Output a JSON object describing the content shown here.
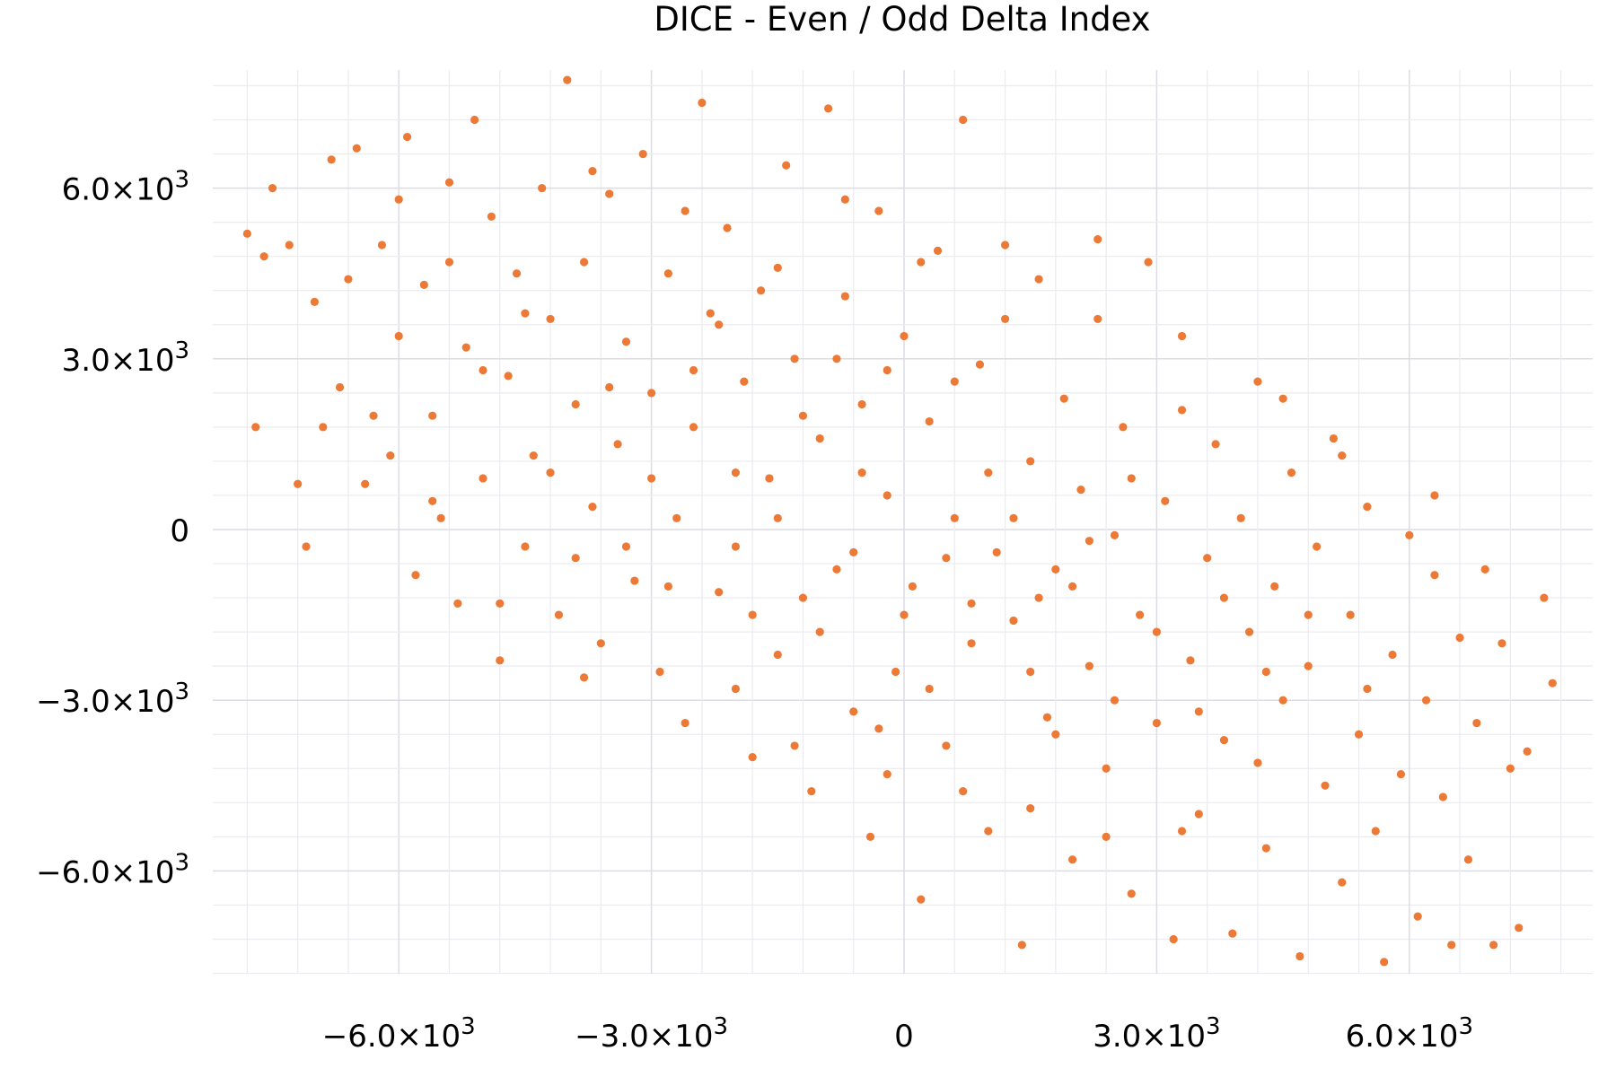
{
  "chart_data": {
    "type": "scatter",
    "title": "DICE - Even / Odd Delta Index",
    "xlabel": "",
    "ylabel": "",
    "xlim": [
      -8200,
      8200
    ],
    "ylim": [
      -7800,
      8100
    ],
    "grid": true,
    "minor_grid_step": 600,
    "legend": "none",
    "marker_color": "#ec7a36",
    "xticks": [
      {
        "value": -6000,
        "base": "−6.0×10",
        "exp": "3"
      },
      {
        "value": -3000,
        "base": "−3.0×10",
        "exp": "3"
      },
      {
        "value": 0,
        "base": "0",
        "exp": ""
      },
      {
        "value": 3000,
        "base": "3.0×10",
        "exp": "3"
      },
      {
        "value": 6000,
        "base": "6.0×10",
        "exp": "3"
      }
    ],
    "yticks": [
      {
        "value": 6000,
        "base": "6.0×10",
        "exp": "3"
      },
      {
        "value": 3000,
        "base": "3.0×10",
        "exp": "3"
      },
      {
        "value": 0,
        "base": "0",
        "exp": ""
      },
      {
        "value": -3000,
        "base": "−3.0×10",
        "exp": "3"
      },
      {
        "value": -6000,
        "base": "−6.0×10",
        "exp": "3"
      }
    ],
    "points": [
      [
        -7800,
        5200
      ],
      [
        -7700,
        1800
      ],
      [
        -7600,
        4800
      ],
      [
        -7500,
        6000
      ],
      [
        -7300,
        5000
      ],
      [
        -7200,
        800
      ],
      [
        -7100,
        -300
      ],
      [
        -7000,
        4000
      ],
      [
        -6900,
        1800
      ],
      [
        -6800,
        6500
      ],
      [
        -6700,
        2500
      ],
      [
        -6600,
        4400
      ],
      [
        -6500,
        6700
      ],
      [
        -6400,
        800
      ],
      [
        -6300,
        2000
      ],
      [
        -6200,
        5000
      ],
      [
        -6100,
        1300
      ],
      [
        -6000,
        3400
      ],
      [
        -5900,
        6900
      ],
      [
        -5800,
        -800
      ],
      [
        -5700,
        4300
      ],
      [
        -5600,
        2000
      ],
      [
        -5500,
        200
      ],
      [
        -5400,
        6100
      ],
      [
        -5300,
        -1300
      ],
      [
        -5200,
        3200
      ],
      [
        -5100,
        7200
      ],
      [
        -5000,
        900
      ],
      [
        -4900,
        5500
      ],
      [
        -4800,
        -2300
      ],
      [
        -4700,
        2700
      ],
      [
        -4600,
        4500
      ],
      [
        -4500,
        -300
      ],
      [
        -4400,
        1300
      ],
      [
        -4300,
        6000
      ],
      [
        -4200,
        3700
      ],
      [
        -4100,
        -1500
      ],
      [
        -4000,
        7900
      ],
      [
        -3900,
        2200
      ],
      [
        -3800,
        4700
      ],
      [
        -3700,
        400
      ],
      [
        -3600,
        -2000
      ],
      [
        -3500,
        5900
      ],
      [
        -3400,
        1500
      ],
      [
        -3300,
        3300
      ],
      [
        -3200,
        -900
      ],
      [
        -3100,
        6600
      ],
      [
        -3000,
        2400
      ],
      [
        -2900,
        -2500
      ],
      [
        -2800,
        4500
      ],
      [
        -2700,
        200
      ],
      [
        -2600,
        -3400
      ],
      [
        -2500,
        1800
      ],
      [
        -2400,
        7500
      ],
      [
        -2300,
        3800
      ],
      [
        -2200,
        -1100
      ],
      [
        -2100,
        5300
      ],
      [
        -2000,
        -300
      ],
      [
        -1900,
        2600
      ],
      [
        -1800,
        -4000
      ],
      [
        -1700,
        4200
      ],
      [
        -1600,
        900
      ],
      [
        -1500,
        -2200
      ],
      [
        -1400,
        6400
      ],
      [
        -1300,
        3000
      ],
      [
        -1200,
        -1200
      ],
      [
        -1100,
        -4600
      ],
      [
        -1000,
        1600
      ],
      [
        -900,
        7400
      ],
      [
        -800,
        -700
      ],
      [
        -700,
        4100
      ],
      [
        -600,
        -3200
      ],
      [
        -500,
        2200
      ],
      [
        -400,
        -5400
      ],
      [
        -300,
        5600
      ],
      [
        -200,
        600
      ],
      [
        -100,
        -2500
      ],
      [
        0,
        3400
      ],
      [
        100,
        -1000
      ],
      [
        200,
        -6500
      ],
      [
        300,
        1900
      ],
      [
        400,
        4900
      ],
      [
        500,
        -3800
      ],
      [
        600,
        200
      ],
      [
        700,
        7200
      ],
      [
        800,
        -2000
      ],
      [
        900,
        2900
      ],
      [
        1000,
        -5300
      ],
      [
        1100,
        -400
      ],
      [
        1200,
        3700
      ],
      [
        1300,
        -1600
      ],
      [
        1400,
        -7300
      ],
      [
        1500,
        1200
      ],
      [
        1600,
        4400
      ],
      [
        1700,
        -3300
      ],
      [
        1800,
        -700
      ],
      [
        1900,
        2300
      ],
      [
        2000,
        -5800
      ],
      [
        2100,
        700
      ],
      [
        2200,
        -2400
      ],
      [
        2300,
        3700
      ],
      [
        2400,
        -4200
      ],
      [
        2500,
        -100
      ],
      [
        2600,
        1800
      ],
      [
        2700,
        -6400
      ],
      [
        2800,
        -1500
      ],
      [
        2900,
        4700
      ],
      [
        3000,
        -3400
      ],
      [
        3100,
        500
      ],
      [
        3200,
        -7200
      ],
      [
        3300,
        2100
      ],
      [
        3400,
        -2300
      ],
      [
        3500,
        -5000
      ],
      [
        3600,
        -500
      ],
      [
        3700,
        1500
      ],
      [
        3800,
        -3700
      ],
      [
        3900,
        -7100
      ],
      [
        4000,
        200
      ],
      [
        4100,
        -1800
      ],
      [
        4200,
        2600
      ],
      [
        4300,
        -5600
      ],
      [
        4400,
        -1000
      ],
      [
        4500,
        -3000
      ],
      [
        4600,
        1000
      ],
      [
        4700,
        -7500
      ],
      [
        4800,
        -2400
      ],
      [
        4900,
        -300
      ],
      [
        5000,
        -4500
      ],
      [
        5100,
        1600
      ],
      [
        5200,
        -6200
      ],
      [
        5300,
        -1500
      ],
      [
        5400,
        -3600
      ],
      [
        5500,
        400
      ],
      [
        5600,
        -5300
      ],
      [
        5700,
        -7600
      ],
      [
        5800,
        -2200
      ],
      [
        5900,
        -4300
      ],
      [
        6000,
        -100
      ],
      [
        6100,
        -6800
      ],
      [
        6200,
        -3000
      ],
      [
        6300,
        600
      ],
      [
        6400,
        -4700
      ],
      [
        6500,
        -7300
      ],
      [
        6600,
        -1900
      ],
      [
        6700,
        -5800
      ],
      [
        6800,
        -3400
      ],
      [
        6900,
        -700
      ],
      [
        7000,
        -7300
      ],
      [
        7100,
        -2000
      ],
      [
        7200,
        -4200
      ],
      [
        7300,
        -7000
      ],
      [
        7400,
        -3900
      ],
      [
        7600,
        -1200
      ],
      [
        7700,
        -2700
      ],
      [
        -4500,
        3800
      ],
      [
        -3900,
        -500
      ],
      [
        -3000,
        900
      ],
      [
        -2500,
        2800
      ],
      [
        -2000,
        1000
      ],
      [
        -1500,
        200
      ],
      [
        -1000,
        -1800
      ],
      [
        -500,
        1000
      ],
      [
        0,
        -1500
      ],
      [
        500,
        -500
      ],
      [
        1000,
        1000
      ],
      [
        1500,
        -2500
      ],
      [
        2000,
        -1000
      ],
      [
        2500,
        -3000
      ],
      [
        3000,
        -1800
      ],
      [
        -3500,
        2500
      ],
      [
        -2800,
        -1000
      ],
      [
        -1200,
        2000
      ],
      [
        300,
        -2800
      ],
      [
        1800,
        -3600
      ],
      [
        2700,
        900
      ],
      [
        3500,
        -3200
      ],
      [
        4300,
        -2500
      ],
      [
        -600,
        -400
      ],
      [
        800,
        -1300
      ],
      [
        -1800,
        -1500
      ],
      [
        -200,
        2800
      ],
      [
        1300,
        200
      ],
      [
        2200,
        -200
      ],
      [
        -4200,
        1000
      ],
      [
        -5000,
        2800
      ],
      [
        -3300,
        -300
      ],
      [
        -2200,
        3600
      ],
      [
        -800,
        3000
      ],
      [
        600,
        2600
      ],
      [
        1600,
        -1200
      ],
      [
        3800,
        -1200
      ],
      [
        4800,
        -1500
      ],
      [
        5500,
        -2800
      ],
      [
        -1500,
        4600
      ],
      [
        -2600,
        5600
      ],
      [
        -3700,
        6300
      ],
      [
        -5400,
        4700
      ],
      [
        -6000,
        5800
      ],
      [
        -700,
        5800
      ],
      [
        200,
        4700
      ],
      [
        1200,
        5000
      ],
      [
        2300,
        5100
      ],
      [
        3300,
        3400
      ],
      [
        4500,
        2300
      ],
      [
        5200,
        1300
      ],
      [
        6300,
        -800
      ],
      [
        -200,
        -4300
      ],
      [
        700,
        -4600
      ],
      [
        1500,
        -4900
      ],
      [
        2400,
        -5400
      ],
      [
        3300,
        -5300
      ],
      [
        4200,
        -4100
      ],
      [
        -2000,
        -2800
      ],
      [
        -1300,
        -3800
      ],
      [
        -300,
        -3500
      ],
      [
        -4800,
        -1300
      ],
      [
        -3800,
        -2600
      ],
      [
        -5600,
        500
      ]
    ]
  }
}
